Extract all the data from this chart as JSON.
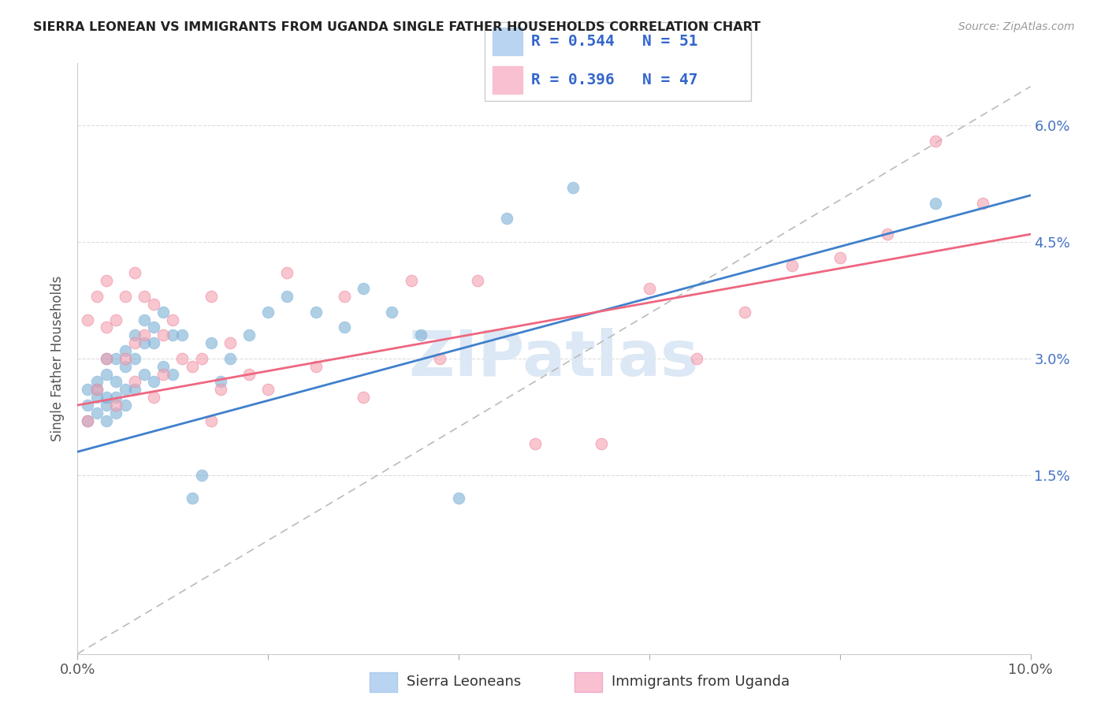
{
  "title": "SIERRA LEONEAN VS IMMIGRANTS FROM UGANDA SINGLE FATHER HOUSEHOLDS CORRELATION CHART",
  "source": "Source: ZipAtlas.com",
  "ylabel": "Single Father Households",
  "xlim": [
    0.0,
    0.1
  ],
  "ylim": [
    -0.008,
    0.068
  ],
  "x_ticks": [
    0.0,
    0.02,
    0.04,
    0.06,
    0.08,
    0.1
  ],
  "y_ticks": [
    0.0,
    0.015,
    0.03,
    0.045,
    0.06
  ],
  "x_tick_labels": [
    "0.0%",
    "",
    "",
    "",
    "",
    "10.0%"
  ],
  "right_y_tick_labels": [
    "",
    "1.5%",
    "3.0%",
    "4.5%",
    "6.0%"
  ],
  "blue_scatter_color": "#7aafd4",
  "pink_scatter_color": "#f4a0b0",
  "blue_line_color": "#4080cc",
  "pink_line_color": "#ee6680",
  "dashed_line_color": "#bbbbbb",
  "watermark_color": "#dce8f5",
  "grid_color": "#dddddd",
  "blue_legend_box": "#b8d4f0",
  "pink_legend_box": "#f8c0d0",
  "legend_text_color": "#3366cc",
  "legend_label1": "R = 0.544   N = 51",
  "legend_label2": "R = 0.396   N = 47",
  "bottom_legend_blue_label": "Sierra Leoneans",
  "bottom_legend_pink_label": "Immigrants from Uganda",
  "blue_line_x0": 0.0,
  "blue_line_y0": 0.018,
  "blue_line_x1": 0.1,
  "blue_line_y1": 0.051,
  "pink_line_x0": 0.0,
  "pink_line_y0": 0.024,
  "pink_line_x1": 0.1,
  "pink_line_y1": 0.046,
  "dash_line_x0": 0.0,
  "dash_line_y0": -0.008,
  "dash_line_x1": 0.1,
  "dash_line_y1": 0.065,
  "sierra_x": [
    0.001,
    0.001,
    0.001,
    0.002,
    0.002,
    0.002,
    0.002,
    0.003,
    0.003,
    0.003,
    0.003,
    0.003,
    0.004,
    0.004,
    0.004,
    0.004,
    0.005,
    0.005,
    0.005,
    0.005,
    0.006,
    0.006,
    0.006,
    0.007,
    0.007,
    0.007,
    0.008,
    0.008,
    0.008,
    0.009,
    0.009,
    0.01,
    0.01,
    0.011,
    0.012,
    0.013,
    0.014,
    0.015,
    0.016,
    0.018,
    0.02,
    0.022,
    0.025,
    0.028,
    0.03,
    0.033,
    0.036,
    0.04,
    0.045,
    0.052,
    0.09
  ],
  "sierra_y": [
    0.024,
    0.026,
    0.022,
    0.025,
    0.027,
    0.023,
    0.026,
    0.025,
    0.028,
    0.022,
    0.03,
    0.024,
    0.027,
    0.03,
    0.025,
    0.023,
    0.029,
    0.026,
    0.024,
    0.031,
    0.033,
    0.03,
    0.026,
    0.035,
    0.032,
    0.028,
    0.034,
    0.032,
    0.027,
    0.036,
    0.029,
    0.033,
    0.028,
    0.033,
    0.012,
    0.015,
    0.032,
    0.027,
    0.03,
    0.033,
    0.036,
    0.038,
    0.036,
    0.034,
    0.039,
    0.036,
    0.033,
    0.012,
    0.048,
    0.052,
    0.05
  ],
  "uganda_x": [
    0.001,
    0.001,
    0.002,
    0.002,
    0.003,
    0.003,
    0.003,
    0.004,
    0.004,
    0.005,
    0.005,
    0.006,
    0.006,
    0.006,
    0.007,
    0.007,
    0.008,
    0.008,
    0.009,
    0.009,
    0.01,
    0.011,
    0.012,
    0.013,
    0.014,
    0.015,
    0.016,
    0.018,
    0.02,
    0.022,
    0.025,
    0.03,
    0.035,
    0.038,
    0.042,
    0.055,
    0.06,
    0.065,
    0.07,
    0.075,
    0.08,
    0.085,
    0.09,
    0.095,
    0.048,
    0.028,
    0.014
  ],
  "uganda_y": [
    0.022,
    0.035,
    0.038,
    0.026,
    0.03,
    0.04,
    0.034,
    0.024,
    0.035,
    0.03,
    0.038,
    0.041,
    0.032,
    0.027,
    0.038,
    0.033,
    0.037,
    0.025,
    0.033,
    0.028,
    0.035,
    0.03,
    0.029,
    0.03,
    0.038,
    0.026,
    0.032,
    0.028,
    0.026,
    0.041,
    0.029,
    0.025,
    0.04,
    0.03,
    0.04,
    0.019,
    0.039,
    0.03,
    0.036,
    0.042,
    0.043,
    0.046,
    0.058,
    0.05,
    0.019,
    0.038,
    0.022
  ]
}
